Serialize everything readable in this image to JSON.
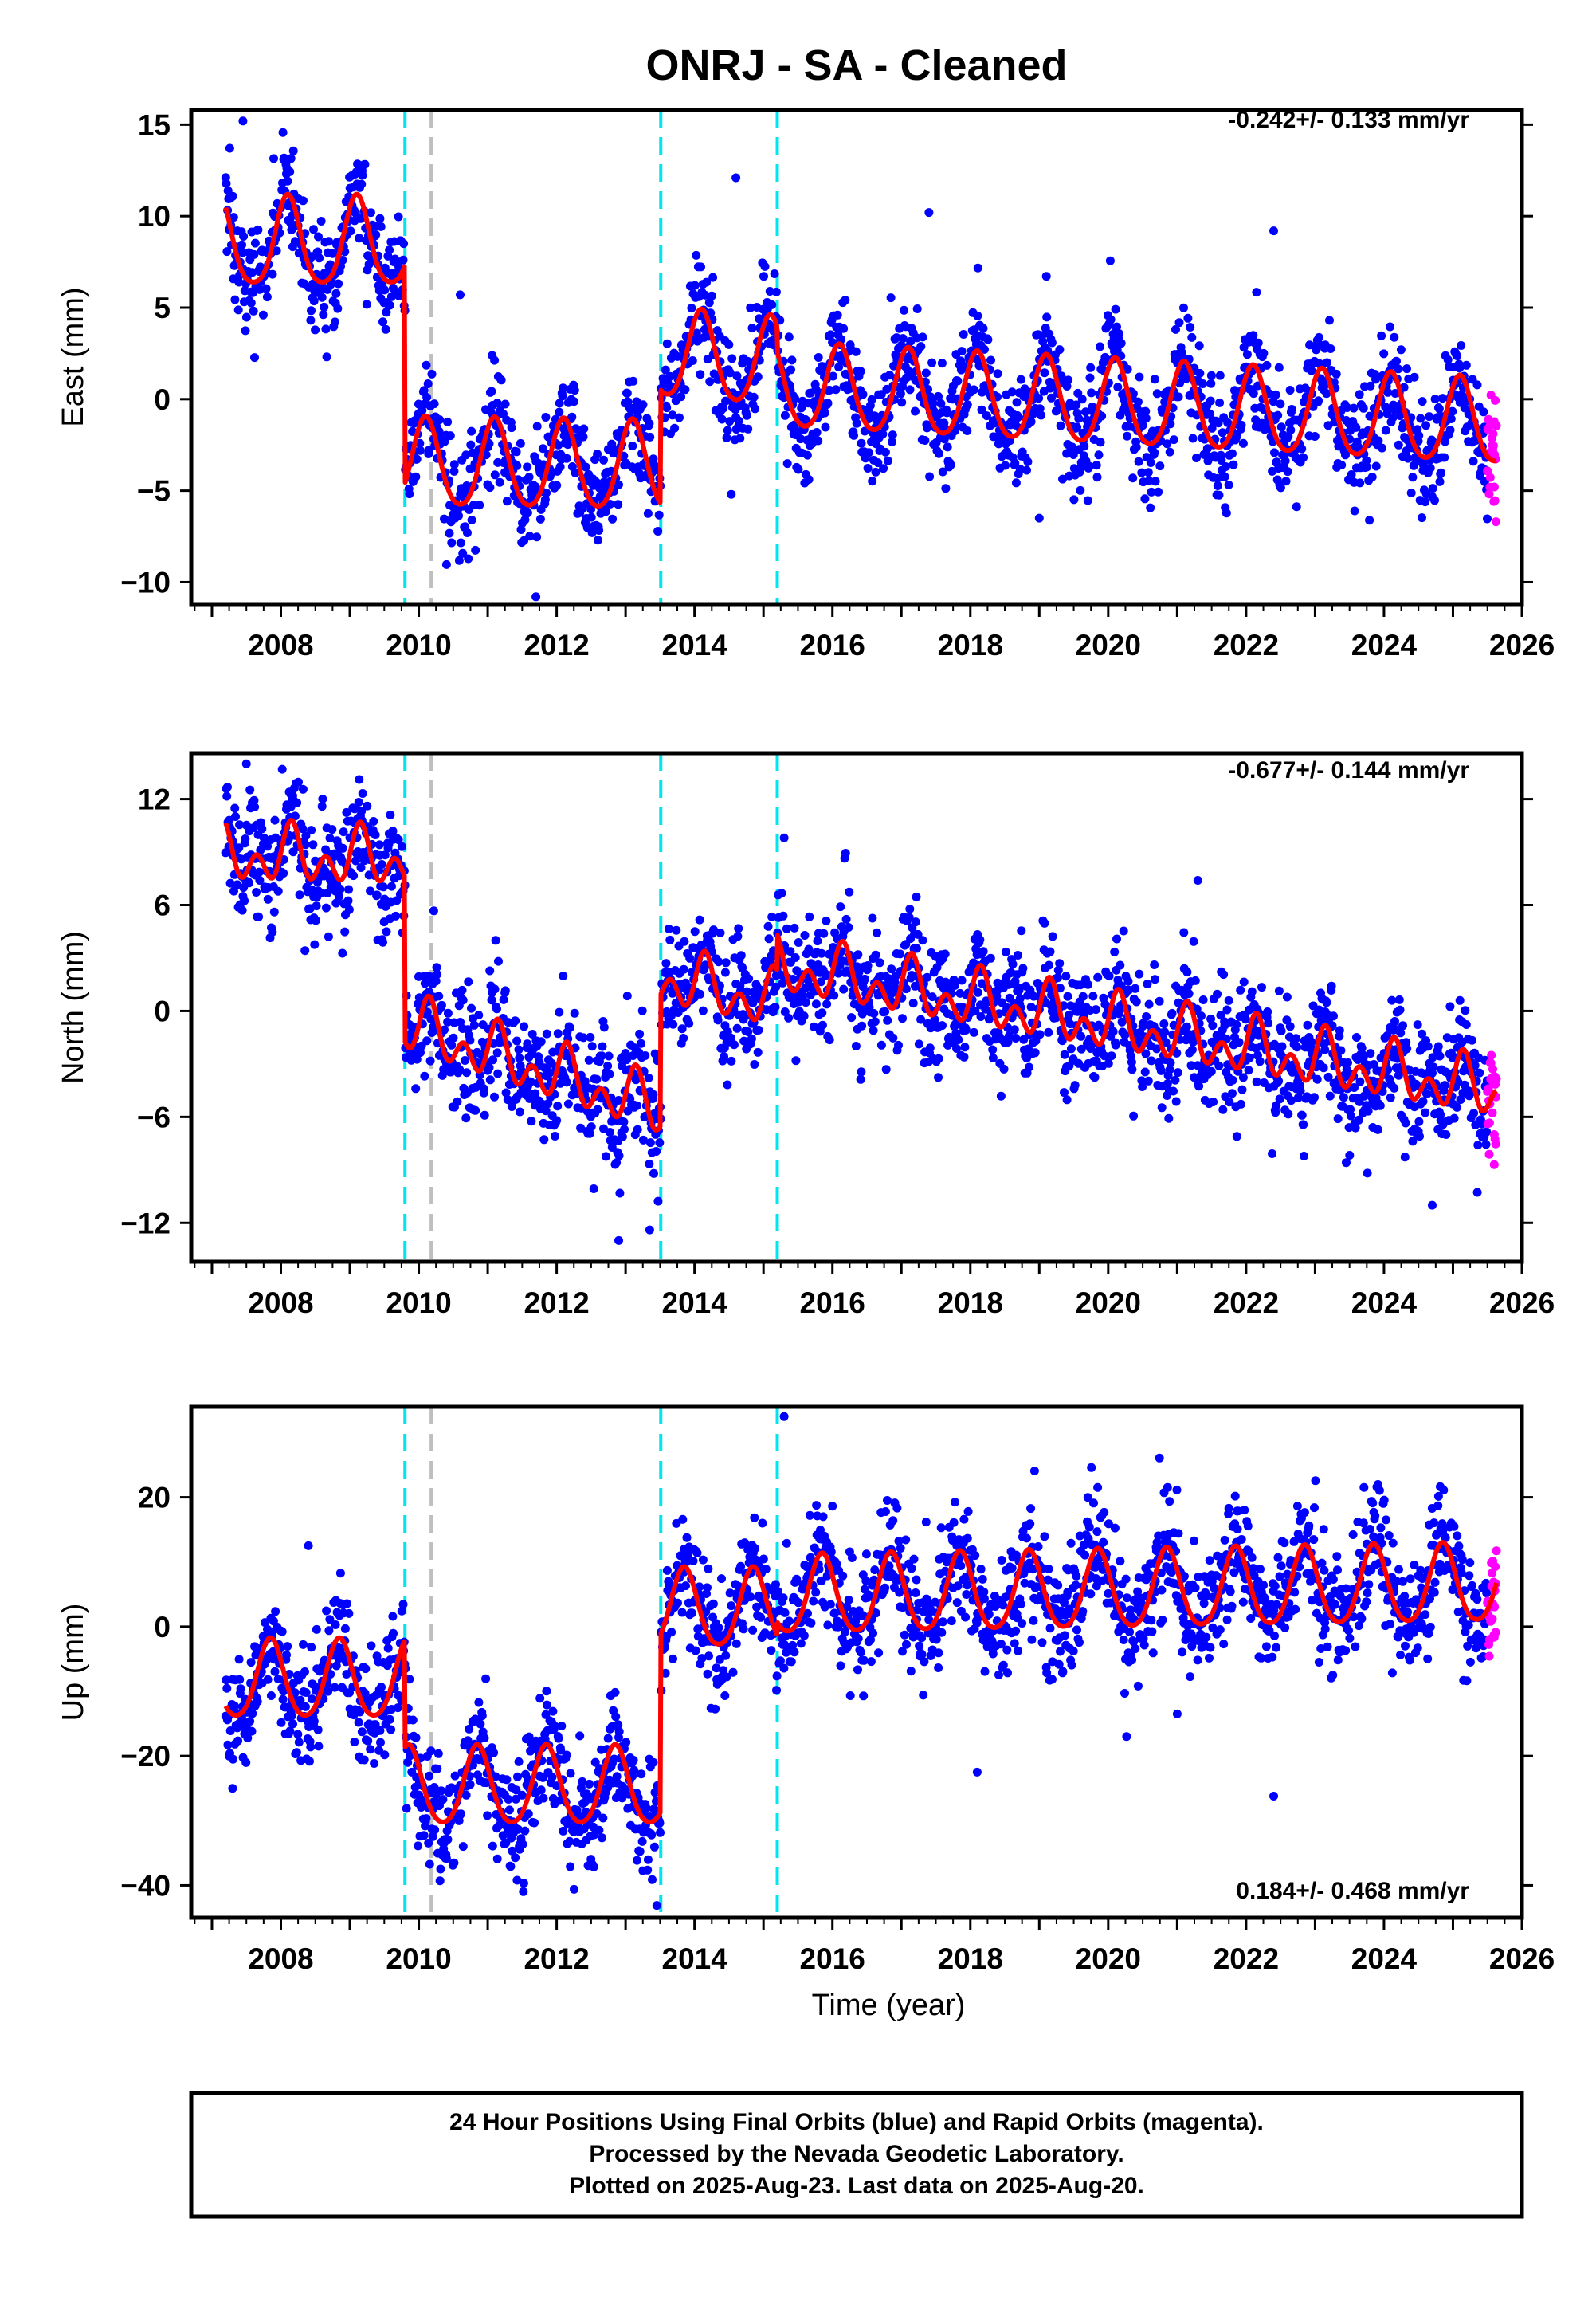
{
  "title": "ONRJ  - SA - Cleaned",
  "colors": {
    "final": "#0000ff",
    "rapid": "#ff00ff",
    "model": "#ff0000",
    "equipment_change": "#00e5ee",
    "other_event": "#bfbfbf",
    "frame": "#000000"
  },
  "chart_data": [
    {
      "type": "scatter",
      "component": "East",
      "ylabel": "East (mm)",
      "xlabel": "",
      "xlim": [
        2006.7,
        2026.0
      ],
      "ylim": [
        -11.2,
        15.8
      ],
      "yticks": [
        15,
        10,
        5,
        0,
        -5,
        -10
      ],
      "ytick_labels": [
        "15",
        "10",
        "5",
        "0",
        "−5",
        "−10"
      ],
      "xticks": [
        2008,
        2010,
        2012,
        2014,
        2016,
        2018,
        2020,
        2022,
        2024,
        2026
      ],
      "rate_label": "-0.242+/- 0.133 mm/yr",
      "rate_position": "top-right",
      "data_start": 2007.2,
      "data_end": 2025.63,
      "rapid_start": 2025.5,
      "breaks": [
        2009.8,
        2010.18,
        2013.51,
        2015.2
      ],
      "break_kinds": [
        "cyan",
        "gray",
        "cyan",
        "cyan"
      ],
      "model_segments": [
        {
          "start": 2007.2,
          "end": 2009.8,
          "offset": 8.4,
          "trend": 0.0,
          "amplitude": 2.4,
          "phase": 0.1,
          "semi_amplitude": 0.4
        },
        {
          "start": 2009.8,
          "end": 2013.51,
          "offset": -3.6,
          "trend": -0.05,
          "amplitude": 2.4,
          "phase": 0.1,
          "semi_amplitude": 0.3
        },
        {
          "start": 2013.51,
          "end": 2015.2,
          "offset": 2.4,
          "trend": -0.3,
          "amplitude": 2.4,
          "phase": 0.1,
          "semi_amplitude": 0.3
        },
        {
          "start": 2015.2,
          "end": 2025.63,
          "offset": 0.6,
          "trend": -0.19,
          "amplitude": 2.3,
          "phase": 0.1,
          "semi_amplitude": 0.3
        }
      ],
      "scatter_sigma": 1.5,
      "outliers": [
        {
          "x": 2007.45,
          "y": 15.2
        },
        {
          "x": 2010.6,
          "y": 5.7
        },
        {
          "x": 2014.6,
          "y": 12.1
        },
        {
          "x": 2017.4,
          "y": 10.2
        },
        {
          "x": 2022.4,
          "y": 9.2
        },
        {
          "x": 2011.7,
          "y": -10.8
        },
        {
          "x": 2019.0,
          "y": -6.5
        },
        {
          "x": 2025.6,
          "y": -4.8
        }
      ]
    },
    {
      "type": "scatter",
      "component": "North",
      "ylabel": "North (mm)",
      "xlabel": "",
      "xlim": [
        2006.7,
        2026.0
      ],
      "ylim": [
        -14.2,
        14.6
      ],
      "yticks": [
        12,
        6,
        0,
        -6,
        -12
      ],
      "ytick_labels": [
        "12",
        "6",
        "0",
        "−6",
        "−12"
      ],
      "xticks": [
        2008,
        2010,
        2012,
        2014,
        2016,
        2018,
        2020,
        2022,
        2024,
        2026
      ],
      "rate_label": "-0.677+/- 0.144 mm/yr",
      "rate_position": "top-right",
      "data_start": 2007.2,
      "data_end": 2025.63,
      "rapid_start": 2025.5,
      "breaks": [
        2009.8,
        2010.18,
        2013.51,
        2015.2
      ],
      "break_kinds": [
        "cyan",
        "gray",
        "cyan",
        "cyan"
      ],
      "model_segments": [
        {
          "start": 2007.2,
          "end": 2009.8,
          "offset": 8.8,
          "trend": -0.1,
          "amplitude": 1.0,
          "phase": 0.15,
          "semi_amplitude": 1.1
        },
        {
          "start": 2009.8,
          "end": 2013.51,
          "offset": -0.8,
          "trend": -1.3,
          "amplitude": 1.0,
          "phase": 0.15,
          "semi_amplitude": 1.1
        },
        {
          "start": 2013.51,
          "end": 2015.2,
          "offset": 1.8,
          "trend": -0.8,
          "amplitude": 1.0,
          "phase": 0.15,
          "semi_amplitude": 1.1
        },
        {
          "start": 2015.2,
          "end": 2025.63,
          "offset": 2.5,
          "trend": -0.68,
          "amplitude": 1.0,
          "phase": 0.15,
          "semi_amplitude": 1.1
        }
      ],
      "scatter_sigma": 1.7,
      "outliers": [
        {
          "x": 2007.5,
          "y": 14.0
        },
        {
          "x": 2015.3,
          "y": 9.8
        },
        {
          "x": 2021.3,
          "y": 7.4
        },
        {
          "x": 2012.9,
          "y": -13.0
        },
        {
          "x": 2013.35,
          "y": -12.4
        },
        {
          "x": 2024.7,
          "y": -11.0
        },
        {
          "x": 2025.6,
          "y": -7.0
        }
      ]
    },
    {
      "type": "scatter",
      "component": "Up",
      "ylabel": "Up (mm)",
      "xlabel": "Time (year)",
      "xlim": [
        2006.7,
        2026.0
      ],
      "ylim": [
        -45,
        34
      ],
      "yticks": [
        20,
        0,
        -20,
        -40
      ],
      "ytick_labels": [
        "20",
        "0",
        "−20",
        "−40"
      ],
      "xticks": [
        2008,
        2010,
        2012,
        2014,
        2016,
        2018,
        2020,
        2022,
        2024,
        2026
      ],
      "rate_label": "0.184+/- 0.468 mm/yr",
      "rate_position": "bottom-right",
      "data_start": 2007.2,
      "data_end": 2025.63,
      "rapid_start": 2025.5,
      "breaks": [
        2009.8,
        2010.18,
        2013.51,
        2015.2
      ],
      "break_kinds": [
        "cyan",
        "gray",
        "cyan",
        "cyan"
      ],
      "model_segments": [
        {
          "start": 2007.2,
          "end": 2009.8,
          "offset": -8.5,
          "trend": 0.0,
          "amplitude": 6.0,
          "phase": 0.85,
          "semi_amplitude": 0.8
        },
        {
          "start": 2009.8,
          "end": 2013.51,
          "offset": -25.0,
          "trend": 0.0,
          "amplitude": 6.0,
          "phase": 0.85,
          "semi_amplitude": 0.8
        },
        {
          "start": 2013.51,
          "end": 2015.2,
          "offset": 2.5,
          "trend": 0.0,
          "amplitude": 6.0,
          "phase": 0.85,
          "semi_amplitude": 0.8
        },
        {
          "start": 2015.2,
          "end": 2025.63,
          "offset": 4.5,
          "trend": 0.18,
          "amplitude": 6.0,
          "phase": 0.85,
          "semi_amplitude": 0.8
        }
      ],
      "scatter_sigma": 4.5,
      "outliers": [
        {
          "x": 2015.3,
          "y": 32.5
        },
        {
          "x": 2018.1,
          "y": -22.5
        },
        {
          "x": 2022.4,
          "y": -26.2
        },
        {
          "x": 2021.0,
          "y": -13.5
        },
        {
          "x": 2008.4,
          "y": 12.5
        },
        {
          "x": 2007.3,
          "y": -25.0
        }
      ]
    }
  ],
  "footer": {
    "line1": "24 Hour Positions Using Final Orbits (blue) and Rapid Orbits (magenta).",
    "line2": "Processed by the Nevada Geodetic Laboratory.",
    "line3": "Plotted on 2025-Aug-23. Last data on 2025-Aug-20."
  }
}
